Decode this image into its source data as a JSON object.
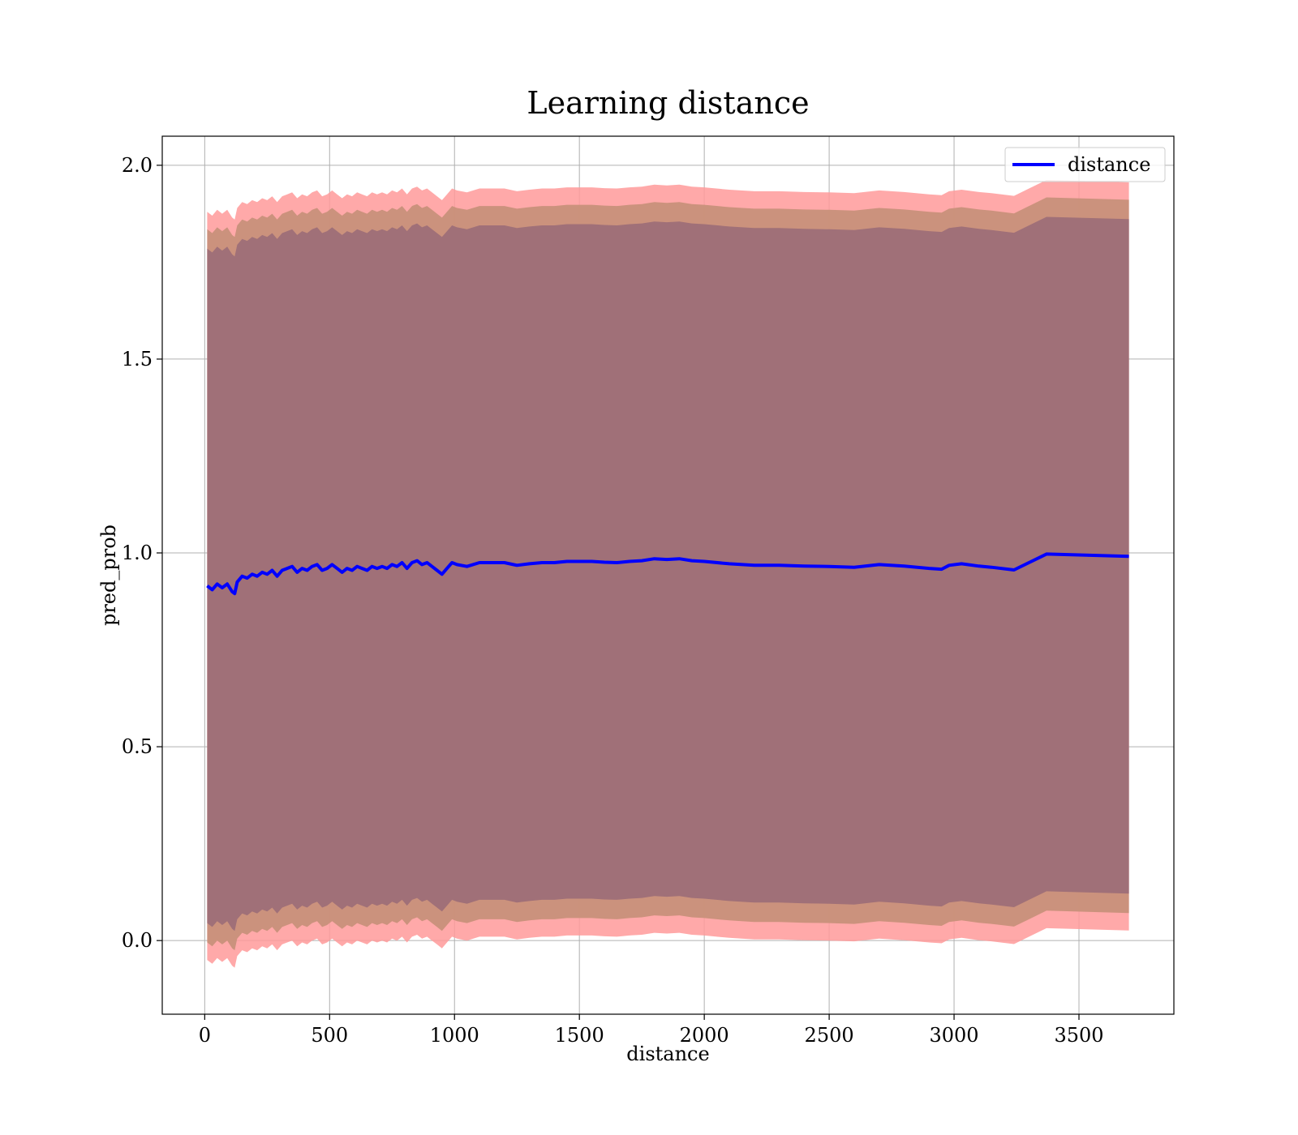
{
  "chart_data": {
    "type": "line",
    "title": "Learning distance",
    "xlabel": "distance",
    "ylabel": "pred_prob",
    "xlim": [
      -170,
      3880
    ],
    "ylim": [
      -0.19,
      2.075
    ],
    "xticks": [
      0,
      500,
      1000,
      1500,
      2000,
      2500,
      3000,
      3500
    ],
    "xtick_labels": [
      "0",
      "500",
      "1000",
      "1500",
      "2000",
      "2500",
      "3000",
      "3500"
    ],
    "yticks": [
      0.0,
      0.5,
      1.0,
      1.5,
      2.0
    ],
    "ytick_labels": [
      "0.0",
      "0.5",
      "1.0",
      "1.5",
      "2.0"
    ],
    "grid": true,
    "legend": {
      "position": "top-right",
      "entries": [
        "distance"
      ]
    },
    "colors": {
      "line": "#0000ff",
      "band_outer": "#ff9a9a",
      "band_middle": "#c8907a",
      "band_inner": "#a07078",
      "grid": "#b0b0b0"
    },
    "series": [
      {
        "name": "distance",
        "x": [
          10,
          30,
          50,
          70,
          90,
          110,
          120,
          130,
          150,
          170,
          190,
          210,
          230,
          250,
          270,
          290,
          310,
          330,
          350,
          370,
          390,
          410,
          430,
          450,
          470,
          490,
          510,
          530,
          550,
          570,
          590,
          610,
          630,
          650,
          670,
          690,
          710,
          730,
          750,
          770,
          790,
          810,
          830,
          850,
          870,
          890,
          910,
          930,
          950,
          970,
          990,
          1010,
          1050,
          1100,
          1150,
          1200,
          1250,
          1300,
          1350,
          1400,
          1450,
          1500,
          1550,
          1600,
          1650,
          1700,
          1750,
          1800,
          1850,
          1900,
          1950,
          2000,
          2100,
          2200,
          2300,
          2400,
          2500,
          2600,
          2700,
          2800,
          2900,
          2950,
          2980,
          3030,
          3100,
          3150,
          3240,
          3370,
          3700
        ],
        "y": [
          0.915,
          0.905,
          0.92,
          0.91,
          0.92,
          0.9,
          0.895,
          0.925,
          0.94,
          0.935,
          0.945,
          0.94,
          0.95,
          0.945,
          0.955,
          0.94,
          0.955,
          0.96,
          0.965,
          0.95,
          0.96,
          0.955,
          0.965,
          0.97,
          0.955,
          0.96,
          0.97,
          0.96,
          0.95,
          0.96,
          0.955,
          0.965,
          0.96,
          0.955,
          0.965,
          0.96,
          0.965,
          0.96,
          0.97,
          0.965,
          0.975,
          0.96,
          0.975,
          0.98,
          0.97,
          0.975,
          0.965,
          0.955,
          0.945,
          0.96,
          0.975,
          0.97,
          0.965,
          0.975,
          0.975,
          0.975,
          0.968,
          0.972,
          0.975,
          0.975,
          0.978,
          0.978,
          0.978,
          0.976,
          0.975,
          0.978,
          0.98,
          0.985,
          0.983,
          0.985,
          0.98,
          0.978,
          0.972,
          0.968,
          0.968,
          0.966,
          0.965,
          0.963,
          0.97,
          0.966,
          0.96,
          0.958,
          0.968,
          0.972,
          0.966,
          0.963,
          0.956,
          0.997,
          0.991
        ],
        "band_inner": 0.87,
        "band_middle": 0.92,
        "band_outer": 0.965
      }
    ]
  }
}
